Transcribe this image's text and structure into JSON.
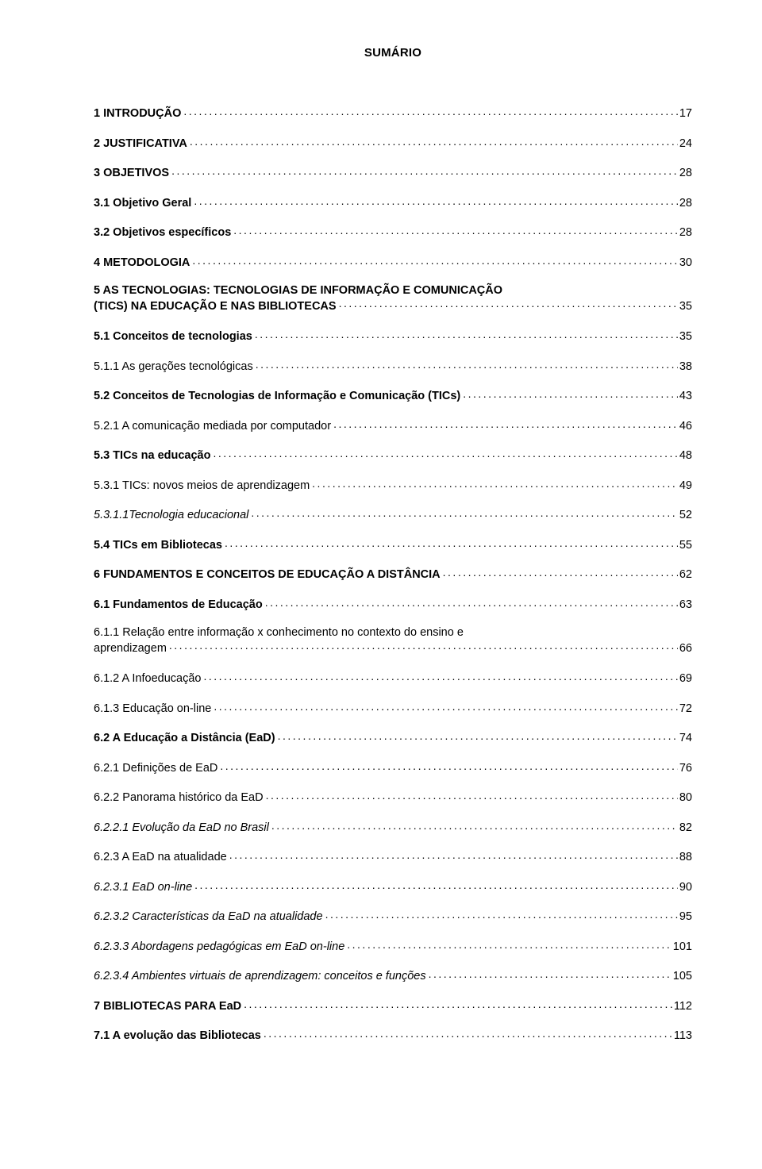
{
  "title": "SUMÁRIO",
  "entries": [
    {
      "label": "1 INTRODUÇÃO",
      "page": "17",
      "style": "bold",
      "multiline": false
    },
    {
      "label": "2 JUSTIFICATIVA",
      "page": "24",
      "style": "bold",
      "multiline": false
    },
    {
      "label": "3 OBJETIVOS",
      "page": "28",
      "style": "bold",
      "multiline": false
    },
    {
      "label": "3.1 Objetivo Geral",
      "page": "28",
      "style": "bold",
      "multiline": false
    },
    {
      "label": "3.2 Objetivos específicos",
      "page": "28",
      "style": "bold",
      "multiline": false
    },
    {
      "label": "4 METODOLOGIA",
      "page": "30",
      "style": "bold",
      "multiline": false
    },
    {
      "label_line1": "5 AS TECNOLOGIAS: TECNOLOGIAS DE INFORMAÇÃO E COMUNICAÇÃO",
      "label_line2": "(TICS) NA EDUCAÇÃO E NAS BIBLIOTECAS",
      "page": "35",
      "style": "bold",
      "multiline": true
    },
    {
      "label": "5.1 Conceitos de tecnologias",
      "page": "35",
      "style": "bold",
      "multiline": false
    },
    {
      "label": "5.1.1 As gerações tecnológicas",
      "page": "38",
      "style": "normal",
      "multiline": false
    },
    {
      "label": "5.2 Conceitos de Tecnologias de Informação e Comunicação (TICs)",
      "page": "43",
      "style": "bold",
      "multiline": false
    },
    {
      "label": "5.2.1 A comunicação mediada por computador",
      "page": "46",
      "style": "normal",
      "multiline": false
    },
    {
      "label": "5.3 TICs na educação",
      "page": "48",
      "style": "bold",
      "multiline": false
    },
    {
      "label": "5.3.1 TICs: novos meios de aprendizagem",
      "page": "49",
      "style": "normal",
      "multiline": false
    },
    {
      "label": "5.3.1.1Tecnologia educacional",
      "page": "52",
      "style": "italic",
      "multiline": false
    },
    {
      "label": "5.4 TICs em Bibliotecas",
      "page": "55",
      "style": "bold",
      "multiline": false
    },
    {
      "label": "6 FUNDAMENTOS E CONCEITOS DE EDUCAÇÃO A DISTÂNCIA",
      "page": "62",
      "style": "bold",
      "multiline": false
    },
    {
      "label": "6.1 Fundamentos de Educação",
      "page": "63",
      "style": "bold",
      "multiline": false
    },
    {
      "label_line1": "6.1.1 Relação entre informação x conhecimento no contexto do ensino e",
      "label_line2": "aprendizagem",
      "page": "66",
      "style": "normal",
      "multiline": true
    },
    {
      "label": "6.1.2 A Infoeducação",
      "page": "69",
      "style": "normal",
      "multiline": false
    },
    {
      "label": "6.1.3 Educação on-line",
      "page": "72",
      "style": "normal",
      "multiline": false
    },
    {
      "label": "6.2 A Educação a Distância (EaD)",
      "page": "74",
      "style": "bold",
      "multiline": false
    },
    {
      "label": "6.2.1 Definições de EaD",
      "page": "76",
      "style": "normal",
      "multiline": false
    },
    {
      "label": "6.2.2 Panorama histórico da EaD",
      "page": "80",
      "style": "normal",
      "multiline": false
    },
    {
      "label": "6.2.2.1 Evolução da EaD no Brasil",
      "page": "82",
      "style": "italic",
      "multiline": false
    },
    {
      "label": "6.2.3 A EaD na atualidade",
      "page": "88",
      "style": "normal",
      "multiline": false
    },
    {
      "label": "6.2.3.1 EaD on-line",
      "page": "90",
      "style": "italic",
      "multiline": false
    },
    {
      "label": "6.2.3.2 Características da EaD na atualidade",
      "page": "95",
      "style": "italic",
      "multiline": false
    },
    {
      "label": "6.2.3.3 Abordagens pedagógicas em EaD on-line",
      "page": "101",
      "style": "italic",
      "multiline": false
    },
    {
      "label": "6.2.3.4 Ambientes virtuais de aprendizagem: conceitos e funções",
      "page": "105",
      "style": "italic",
      "multiline": false
    },
    {
      "label": "7 BIBLIOTECAS PARA EaD",
      "page": "112",
      "style": "bold",
      "multiline": false
    },
    {
      "label": "7.1 A evolução das Bibliotecas",
      "page": "113",
      "style": "bold",
      "multiline": false
    }
  ],
  "colors": {
    "background": "#ffffff",
    "text": "#000000"
  },
  "fonts": {
    "family": "Verdana, Geneva, sans-serif",
    "title_size_pt": 15,
    "entry_size_pt": 14.5
  }
}
